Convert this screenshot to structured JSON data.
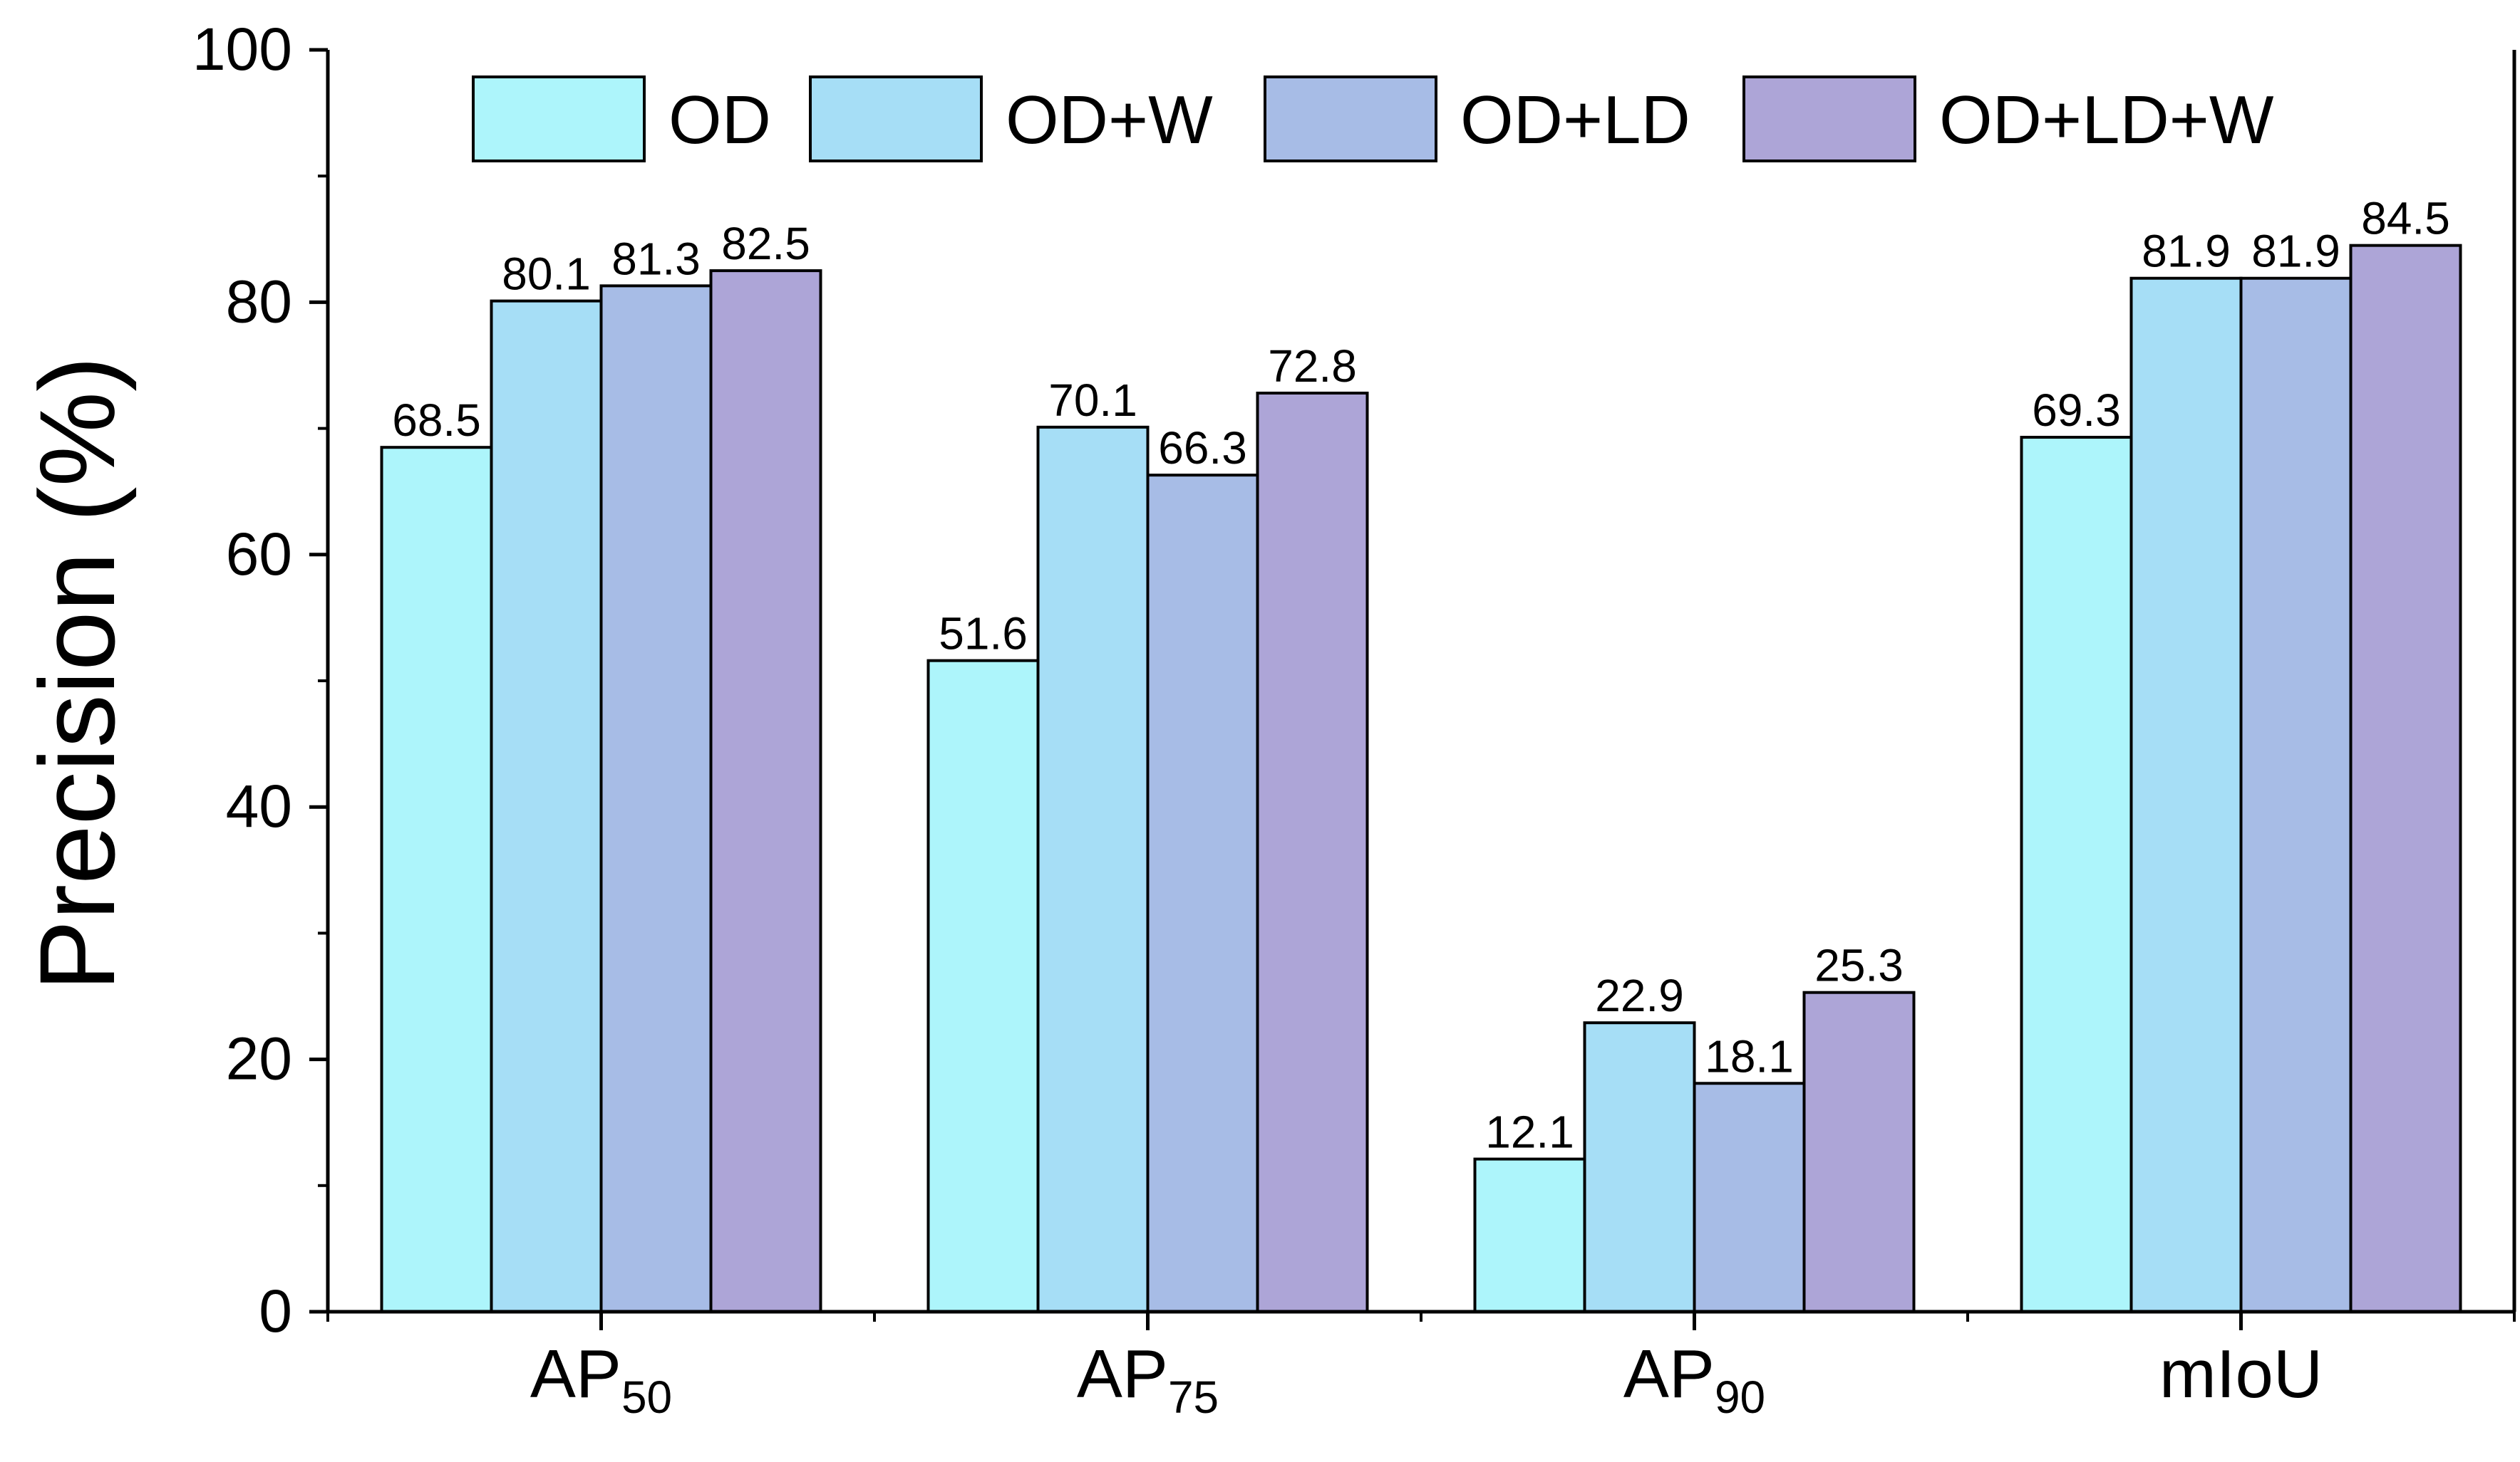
{
  "chart_data": {
    "type": "bar",
    "title": "",
    "xlabel": "",
    "ylabel": "Precision (%)",
    "ylim": [
      0,
      100
    ],
    "yticks": [
      0,
      20,
      40,
      60,
      80,
      100
    ],
    "grid": false,
    "legend_position": "top",
    "categories": [
      {
        "base": "AP",
        "sub": "50"
      },
      {
        "base": "AP",
        "sub": "75"
      },
      {
        "base": "AP",
        "sub": "90"
      },
      {
        "base": "mIoU",
        "sub": ""
      }
    ],
    "series": [
      {
        "name": "OD",
        "color": "#ADF5FB",
        "values": [
          68.5,
          51.6,
          12.1,
          69.3
        ]
      },
      {
        "name": "OD+W",
        "color": "#A6DEF6",
        "values": [
          80.1,
          70.1,
          22.9,
          81.9
        ]
      },
      {
        "name": "OD+LD",
        "color": "#A7BCE6",
        "values": [
          81.3,
          66.3,
          18.1,
          81.9
        ]
      },
      {
        "name": "OD+LD+W",
        "color": "#ADA5D7",
        "values": [
          82.5,
          72.8,
          25.3,
          84.5
        ]
      }
    ]
  }
}
